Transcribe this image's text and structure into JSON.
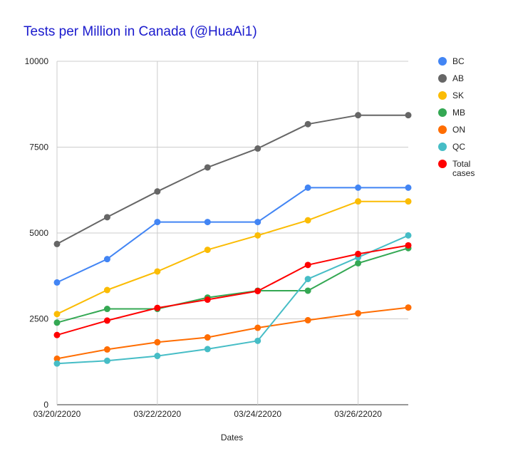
{
  "chart_data": {
    "type": "line",
    "title": "Tests per Million in Canada (@HuaAi1)",
    "xlabel": "Dates",
    "ylabel": "",
    "ylim": [
      0,
      10000
    ],
    "yticks": [
      0,
      2500,
      5000,
      7500,
      10000
    ],
    "ytick_labels": [
      "0",
      "2500",
      "5000",
      "7500",
      "10000"
    ],
    "x_points": 8,
    "xtick_labels": [
      {
        "index": 0,
        "label": "03/20/22020"
      },
      {
        "index": 2,
        "label": "03/22/22020"
      },
      {
        "index": 4,
        "label": "03/24/22020"
      },
      {
        "index": 6,
        "label": "03/26/22020"
      }
    ],
    "grid": true,
    "legend_position": "right",
    "series": [
      {
        "name": "BC",
        "color": "#4285f4",
        "values": [
          3560,
          4240,
          5320,
          5320,
          5320,
          6320,
          6320,
          6320
        ]
      },
      {
        "name": "AB",
        "color": "#666666",
        "values": [
          4680,
          5460,
          6210,
          6910,
          7460,
          8170,
          8430,
          8430
        ]
      },
      {
        "name": "SK",
        "color": "#fbbc04",
        "values": [
          2640,
          3340,
          3880,
          4510,
          4930,
          5370,
          5920,
          5920
        ]
      },
      {
        "name": "MB",
        "color": "#34a853",
        "values": [
          2390,
          2790,
          2790,
          3120,
          3320,
          3320,
          4120,
          4560
        ]
      },
      {
        "name": "ON",
        "color": "#ff6d01",
        "values": [
          1340,
          1610,
          1820,
          1960,
          2240,
          2460,
          2660,
          2830
        ]
      },
      {
        "name": "QC",
        "color": "#46bdc6",
        "values": [
          1200,
          1280,
          1420,
          1620,
          1860,
          3660,
          4290,
          4930
        ]
      },
      {
        "name": "Total cases",
        "label_lines": [
          "Total",
          "cases"
        ],
        "color": "#ff0000",
        "values": [
          2030,
          2450,
          2820,
          3060,
          3310,
          4070,
          4390,
          4640
        ]
      }
    ]
  }
}
